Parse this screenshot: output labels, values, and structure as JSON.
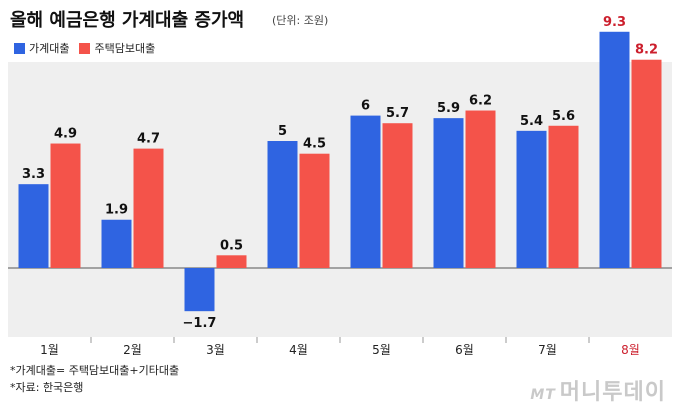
{
  "header": {
    "title": "올해 예금은행 가계대출 증가액",
    "unit": "(단위: 조원)"
  },
  "footnotes": [
    "*가계대출= 주택담보대출+기타대출",
    "*자료: 한국은행"
  ],
  "watermark": {
    "mark": "MT",
    "name": "머니투데이"
  },
  "colors": {
    "household": "#2f64e1",
    "mortgage": "#f4534a",
    "highlight_label": "#cc1f2d",
    "plot_background": "#efefef"
  },
  "chart_data": {
    "type": "bar",
    "categories": [
      "1월",
      "2월",
      "3월",
      "4월",
      "5월",
      "6월",
      "7월",
      "8월"
    ],
    "series": [
      {
        "name": "가계대출",
        "values": [
          3.3,
          1.9,
          -1.7,
          5,
          6,
          5.9,
          5.4,
          9.3
        ],
        "labels": [
          "3.3",
          "1.9",
          "−1.7",
          "5",
          "6",
          "5.9",
          "5.4",
          "9.3"
        ]
      },
      {
        "name": "주택담보대출",
        "values": [
          4.9,
          4.7,
          0.5,
          4.5,
          5.7,
          6.2,
          5.6,
          8.2
        ],
        "labels": [
          "4.9",
          "4.7",
          "0.5",
          "4.5",
          "5.7",
          "6.2",
          "5.6",
          "8.2"
        ]
      }
    ],
    "highlight_category": "8월",
    "ylim": [
      -2.4,
      10
    ],
    "grid": false,
    "legend": "top-left"
  }
}
